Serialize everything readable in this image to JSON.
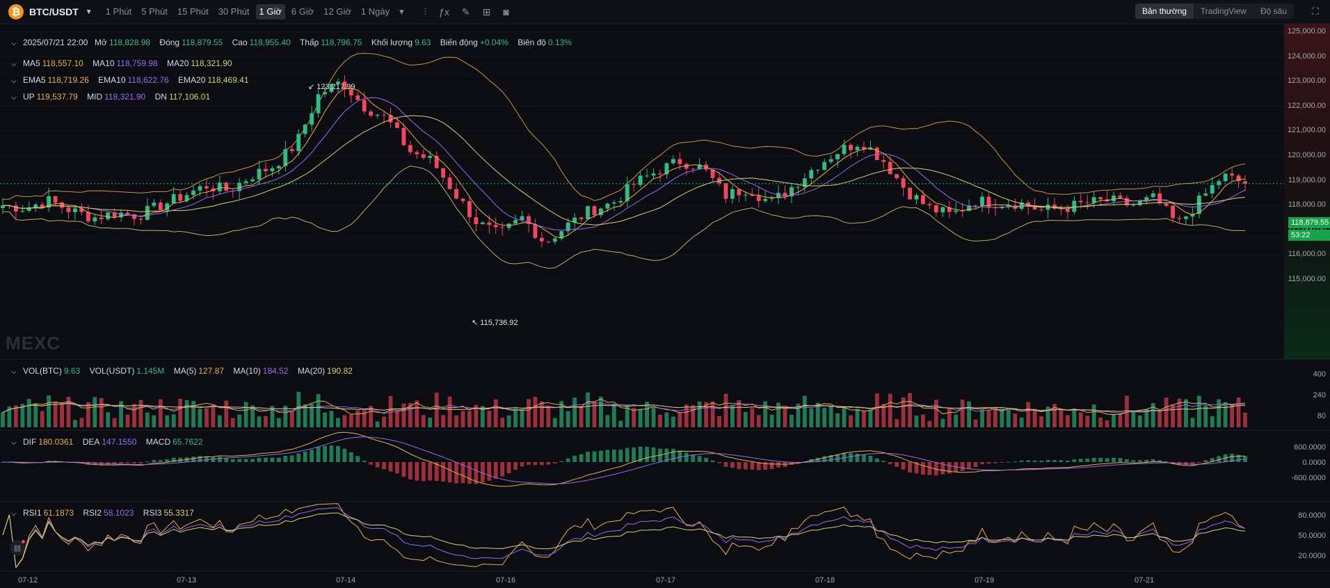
{
  "toolbar": {
    "coin_symbol": "₿",
    "pair": "BTC/USDT",
    "timeframes": [
      "1 Phút",
      "5 Phút",
      "15 Phút",
      "30 Phút",
      "1 Giờ",
      "6 Giờ",
      "12 Giờ",
      "1 Ngày"
    ],
    "active_timeframe": "1 Giờ",
    "views": [
      "Bản thường",
      "TradingView",
      "Độ sâu"
    ],
    "active_view": "Bản thường"
  },
  "candle_info": {
    "date": "2025/07/21 22:00",
    "open_label": "Mở",
    "open": "118,828.98",
    "close_label": "Đóng",
    "close": "118,879.55",
    "high_label": "Cao",
    "high": "118,955.40",
    "low_label": "Thấp",
    "low": "118,796.75",
    "volume_label": "Khối lượng",
    "volume": "9.63",
    "change_label": "Biến động",
    "change": "+0.04%",
    "amplitude_label": "Biên độ",
    "amplitude": "0.13%"
  },
  "ma": {
    "ma5_label": "MA5",
    "ma5": "118,557.10",
    "ma10_label": "MA10",
    "ma10": "118,759.98",
    "ma20_label": "MA20",
    "ma20": "118,321.90"
  },
  "ema": {
    "ema5_label": "EMA5",
    "ema5": "118,719.26",
    "ema10_label": "EMA10",
    "ema10": "118,622.76",
    "ema20_label": "EMA20",
    "ema20": "118,469.41"
  },
  "boll": {
    "up_label": "UP",
    "up": "119,537.79",
    "mid_label": "MID",
    "mid": "118,321.90",
    "dn_label": "DN",
    "dn": "117,106.01"
  },
  "price_axis": [
    "125,000.00",
    "124,000.00",
    "123,000.00",
    "122,000.00",
    "121,000.00",
    "120,000.00",
    "119,000.00",
    "118,000.00",
    "117,000.00",
    "116,000.00",
    "115,000.00"
  ],
  "current_price": "118,879.55",
  "countdown": "53:22",
  "annotations": {
    "high": "123,217.99",
    "low": "115,736.92"
  },
  "watermark": "MEXC",
  "vol": {
    "vol_btc_label": "VOL(BTC)",
    "vol_btc": "9.63",
    "vol_usdt_label": "VOL(USDT)",
    "vol_usdt": "1.145M",
    "ma5_label": "MA(5)",
    "ma5": "127.87",
    "ma10_label": "MA(10)",
    "ma10": "184.52",
    "ma20_label": "MA(20)",
    "ma20": "190.82"
  },
  "vol_axis": [
    "400",
    "240",
    "80"
  ],
  "macd": {
    "dif_label": "DIF",
    "dif": "180.0361",
    "dea_label": "DEA",
    "dea": "147.1550",
    "macd_label": "MACD",
    "macd": "65.7622"
  },
  "macd_axis": [
    "600.0000",
    "0.0000",
    "-600.0000"
  ],
  "rsi": {
    "rsi1_label": "RSI1",
    "rsi1": "61.1873",
    "rsi2_label": "RSI2",
    "rsi2": "58.1023",
    "rsi3_label": "RSI3",
    "rsi3": "55.3317"
  },
  "rsi_axis": [
    "80.0000",
    "50.0000",
    "20.0000"
  ],
  "dates": [
    "07-12",
    "07-13",
    "07-14",
    "07-16",
    "07-17",
    "07-18",
    "07-19",
    "07-21"
  ],
  "colors": {
    "up": "#2ebd85",
    "down": "#f6465d",
    "ma5": "#e8b04a",
    "ma10": "#9a6cf0",
    "ma20": "#d8d26a",
    "boll": "#e8b04a"
  },
  "chart_data": {
    "type": "candlestick",
    "price_range": [
      114600,
      125200
    ],
    "anchor_closes": [
      118000,
      117900,
      118200,
      117800,
      117500,
      117700,
      117600,
      118000,
      118400,
      118800,
      118600,
      119200,
      119600,
      120500,
      122500,
      123000,
      122000,
      121500,
      120200,
      119800,
      118500,
      117300,
      116800,
      117500,
      116500,
      117200,
      117800,
      118100,
      118900,
      119400,
      119800,
      119500,
      118400,
      118700,
      118100,
      118800,
      119600,
      120200,
      120600,
      119800,
      118600,
      117900,
      117600,
      118200,
      118100,
      118100,
      117800,
      117900,
      118100,
      118200,
      118000,
      118300,
      117200,
      118200,
      119200,
      118880
    ]
  }
}
